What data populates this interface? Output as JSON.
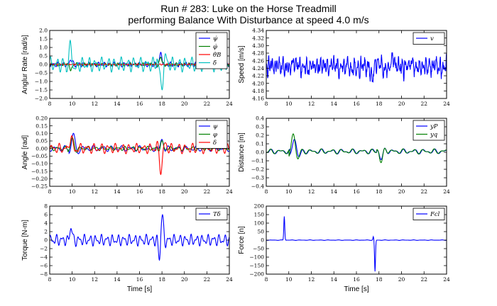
{
  "figure": {
    "title_line1": "Run # 283: Luke on the Horse Treadmill",
    "title_line2": "performing Balance With Disturbance at speed 4.0 m/s"
  },
  "chart_data": [
    {
      "id": "p1",
      "type": "line",
      "ylabel": "Anglur Rate [rad/s]",
      "xlabel": "",
      "xlim": [
        8,
        24
      ],
      "ylim": [
        -2.0,
        2.0
      ],
      "xticks": [
        8,
        10,
        12,
        14,
        16,
        18,
        20,
        22,
        24
      ],
      "xticklabels": [
        "8",
        "10",
        "12",
        "14",
        "16",
        "18",
        "20",
        "22",
        "24"
      ],
      "yticks": [
        -2.0,
        -1.5,
        -1.0,
        -0.5,
        0.0,
        0.5,
        1.0,
        1.5,
        2.0
      ],
      "yticklabels": [
        "−2.0",
        "−1.5",
        "−1.0",
        "−0.5",
        "0.0",
        "0.5",
        "1.0",
        "1.5",
        "2.0"
      ],
      "legend": "top-right",
      "grid": false,
      "series": [
        {
          "name": "ψ̇",
          "color": "#0000ff",
          "amp": 0.15,
          "freq": 2.2,
          "phase": 0.0,
          "events": [
            [
              9.9,
              0.3,
              0.3
            ],
            [
              17.9,
              0.6,
              0.3
            ]
          ],
          "offset": 0
        },
        {
          "name": "φ̇",
          "color": "#008000",
          "amp": 0.1,
          "freq": 2.7,
          "phase": 1.2,
          "events": [
            [
              9.9,
              -0.3,
              0.3
            ],
            [
              17.9,
              0.4,
              0.3
            ]
          ],
          "offset": 0
        },
        {
          "name": "θ̇B",
          "color": "#ff0000",
          "amp": 0.04,
          "freq": 3.1,
          "phase": 0.4,
          "events": [],
          "offset": 0
        },
        {
          "name": "δ̇",
          "color": "#00bfbf",
          "amp": 0.45,
          "freq": 1.75,
          "phase": 0.7,
          "events": [
            [
              9.85,
              1.0,
              0.45
            ],
            [
              17.95,
              -1.3,
              0.4
            ]
          ],
          "offset": 0
        }
      ]
    },
    {
      "id": "p2",
      "type": "line",
      "ylabel": "Speed [m/s]",
      "xlabel": "",
      "xlim": [
        8,
        24
      ],
      "ylim": [
        4.16,
        4.34
      ],
      "xticks": [
        8,
        10,
        12,
        14,
        16,
        18,
        20,
        22,
        24
      ],
      "xticklabels": [
        "8",
        "10",
        "12",
        "14",
        "16",
        "18",
        "20",
        "22",
        "24"
      ],
      "yticks": [
        4.16,
        4.18,
        4.2,
        4.22,
        4.24,
        4.26,
        4.28,
        4.3,
        4.32,
        4.34
      ],
      "yticklabels": [
        "4.16",
        "4.18",
        "4.20",
        "4.22",
        "4.24",
        "4.26",
        "4.28",
        "4.30",
        "4.32",
        "4.34"
      ],
      "legend": "top-right",
      "grid": false,
      "series": [
        {
          "name": "v",
          "color": "#0000ff",
          "amp": 0.022,
          "freq": 3.3,
          "phase": 0.3,
          "events": [
            [
              17.4,
              -0.04,
              0.2
            ],
            [
              19.3,
              0.02,
              0.4
            ]
          ],
          "offset": 4.245,
          "noise": 0.012
        }
      ]
    },
    {
      "id": "p3",
      "type": "line",
      "ylabel": "Angle [rad]",
      "xlabel": "",
      "xlim": [
        8,
        24
      ],
      "ylim": [
        -0.25,
        0.2
      ],
      "xticks": [
        8,
        10,
        12,
        14,
        16,
        18,
        20,
        22,
        24
      ],
      "xticklabels": [
        "8",
        "10",
        "12",
        "14",
        "16",
        "18",
        "20",
        "22",
        "24"
      ],
      "yticks": [
        -0.25,
        -0.2,
        -0.15,
        -0.1,
        -0.05,
        0.0,
        0.05,
        0.1,
        0.15,
        0.2
      ],
      "yticklabels": [
        "−0.25",
        "−0.20",
        "−0.15",
        "−0.10",
        "−0.05",
        "0.00",
        "0.05",
        "0.10",
        "0.15",
        "0.20"
      ],
      "legend": "top-right",
      "grid": false,
      "series": [
        {
          "name": "ψ",
          "color": "#0000ff",
          "amp": 0.02,
          "freq": 1.2,
          "phase": 0.0,
          "events": [
            [
              10.1,
              0.1,
              0.35
            ],
            [
              18.0,
              0.06,
              0.3
            ]
          ],
          "offset": 0
        },
        {
          "name": "φ",
          "color": "#008000",
          "amp": 0.015,
          "freq": 1.5,
          "phase": 1.0,
          "events": [
            [
              10.0,
              0.07,
              0.3
            ],
            [
              18.0,
              0.04,
              0.3
            ]
          ],
          "offset": 0
        },
        {
          "name": "δ",
          "color": "#ff0000",
          "amp": 0.035,
          "freq": 1.6,
          "phase": 0.5,
          "events": [
            [
              9.9,
              0.08,
              0.3
            ],
            [
              17.9,
              -0.14,
              0.35
            ]
          ],
          "offset": 0
        }
      ]
    },
    {
      "id": "p4",
      "type": "line",
      "ylabel": "Distance [m]",
      "xlabel": "",
      "xlim": [
        8,
        24
      ],
      "ylim": [
        -0.4,
        0.4
      ],
      "xticks": [
        8,
        10,
        12,
        14,
        16,
        18,
        20,
        22,
        24
      ],
      "xticklabels": [
        "8",
        "10",
        "12",
        "14",
        "16",
        "18",
        "20",
        "22",
        "24"
      ],
      "yticks": [
        -0.4,
        -0.3,
        -0.2,
        -0.1,
        0.0,
        0.1,
        0.2,
        0.3,
        0.4
      ],
      "yticklabels": [
        "−0.4",
        "−0.3",
        "−0.2",
        "−0.1",
        "0.0",
        "0.1",
        "0.2",
        "0.3",
        "0.4"
      ],
      "legend": "top-right",
      "grid": false,
      "series": [
        {
          "name": "yP",
          "color": "#0000ff",
          "amp": 0.03,
          "freq": 1.1,
          "phase": 0.2,
          "events": [
            [
              10.5,
              0.16,
              0.45
            ],
            [
              18.2,
              -0.09,
              0.35
            ]
          ],
          "offset": 0.01
        },
        {
          "name": "yq",
          "color": "#008000",
          "amp": 0.03,
          "freq": 1.1,
          "phase": 0.5,
          "events": [
            [
              10.4,
              0.22,
              0.45
            ],
            [
              18.2,
              -0.13,
              0.35
            ]
          ],
          "offset": 0.01
        }
      ]
    },
    {
      "id": "p5",
      "type": "line",
      "ylabel": "Torque [N-m]",
      "xlabel": "Time [s]",
      "xlim": [
        8,
        24
      ],
      "ylim": [
        -8,
        8
      ],
      "xticks": [
        8,
        10,
        12,
        14,
        16,
        18,
        20,
        22,
        24
      ],
      "xticklabels": [
        "8",
        "10",
        "12",
        "14",
        "16",
        "18",
        "20",
        "22",
        "24"
      ],
      "yticks": [
        -8,
        -6,
        -4,
        -2,
        0,
        2,
        4,
        6,
        8
      ],
      "yticklabels": [
        "−8",
        "−6",
        "−4",
        "−2",
        "0",
        "2",
        "4",
        "6",
        "8"
      ],
      "legend": "top-right",
      "grid": false,
      "series": [
        {
          "name": "Tδ",
          "color": "#0000ff",
          "amp": 1.4,
          "freq": 2.0,
          "phase": 0.3,
          "events": [
            [
              9.9,
              3.0,
              0.25
            ],
            [
              18.0,
              6.0,
              0.25
            ],
            [
              17.8,
              -5.0,
              0.15
            ]
          ],
          "offset": 0
        }
      ]
    },
    {
      "id": "p6",
      "type": "line",
      "ylabel": "Force [n]",
      "xlabel": "Time [s]",
      "xlim": [
        8,
        24
      ],
      "ylim": [
        -200,
        200
      ],
      "xticks": [
        8,
        10,
        12,
        14,
        16,
        18,
        20,
        22,
        24
      ],
      "xticklabels": [
        "8",
        "10",
        "12",
        "14",
        "16",
        "18",
        "20",
        "22",
        "24"
      ],
      "yticks": [
        -200,
        -150,
        -100,
        -50,
        0,
        50,
        100,
        150,
        200
      ],
      "yticklabels": [
        "−200",
        "−150",
        "−100",
        "−50",
        "0",
        "50",
        "100",
        "150",
        "200"
      ],
      "legend": "top-right",
      "grid": false,
      "series": [
        {
          "name": "Fcl",
          "color": "#0000ff",
          "amp": 1.5,
          "freq": 1.2,
          "phase": 0.0,
          "events": [
            [
              9.6,
              140,
              0.06
            ],
            [
              17.5,
              20,
              0.05
            ],
            [
              17.65,
              -185,
              0.06
            ]
          ],
          "offset": 0
        }
      ]
    }
  ]
}
